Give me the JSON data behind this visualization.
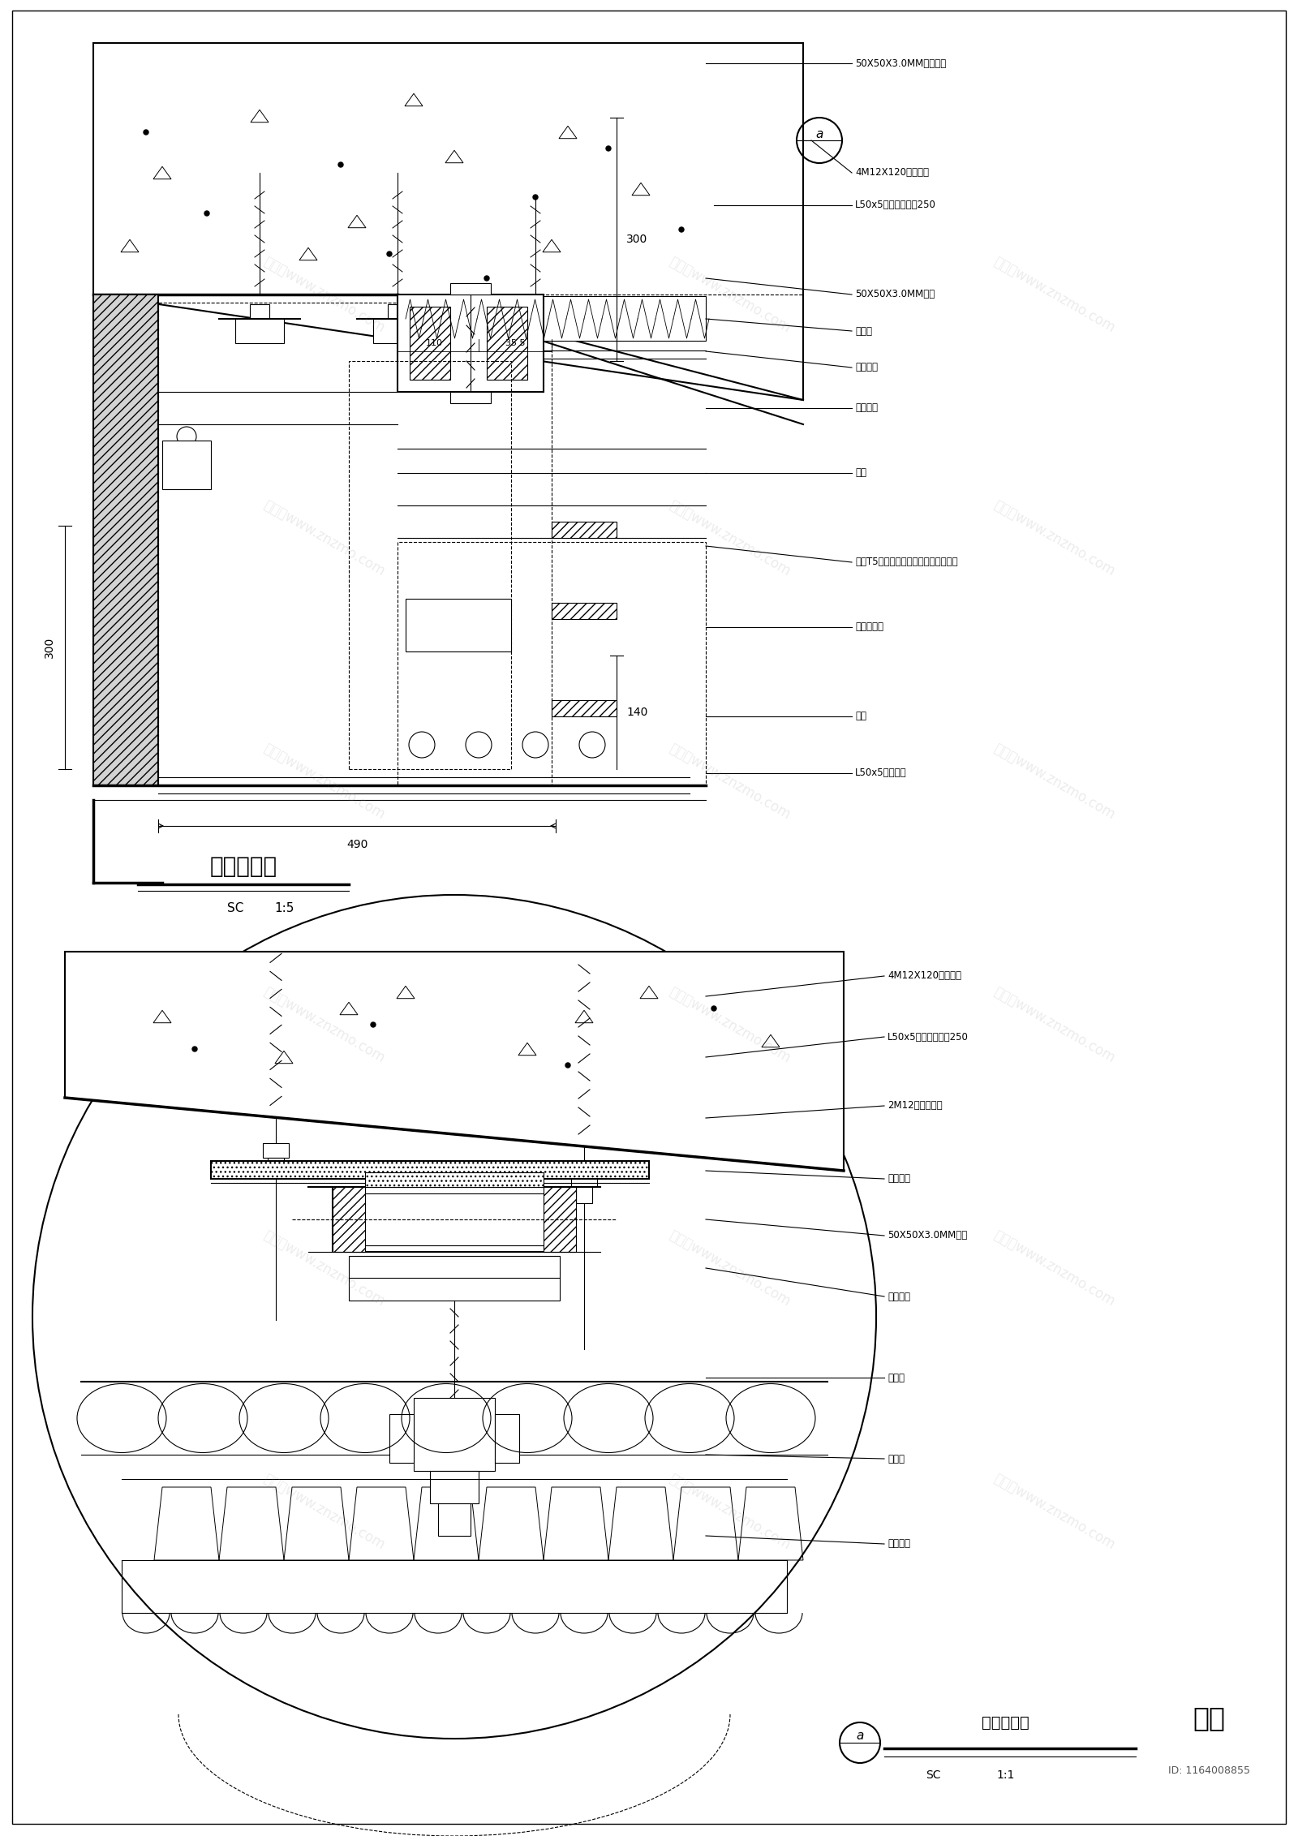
{
  "bg_color": "#ffffff",
  "line_color": "#000000",
  "fig_width": 16.0,
  "fig_height": 22.63,
  "drawing1": {
    "title": "节点大样图",
    "scale_label": "SC",
    "scale_value": "1:5",
    "dim_490": "490",
    "dim_300_left": "300",
    "dim_300_right": "300",
    "dim_140": "140",
    "dim_110": "110",
    "dim_355": "35 5",
    "annotations": [
      "50X50X3.0MM镀锌钢道",
      "4M12X120膨胀螺栓",
      "L50x5镀锌钢角码长250",
      "50X50X3.0MM铝道",
      "吸声棉",
      "铝制龙骨",
      "木质音板",
      "石材",
      "暗藏T5灯管（暗器遮光，保证无暗点）",
      "不锈钢挂件",
      "石材",
      "L50x5镀锌角钢"
    ]
  },
  "drawing2": {
    "title": "节点大样图",
    "scale_label": "SC",
    "scale_value": "1:1",
    "circle_label": "a",
    "annotations": [
      "4M12X120膨胀螺栓",
      "L50x5镀锌钢角码长250",
      "2M12六角头螺栓",
      "绝缘胶垫",
      "50X50X3.0MM铝道",
      "铝制龙骨",
      "吸声棉",
      "挂码件",
      "木质音板"
    ]
  },
  "logo_text": "知末",
  "id_text": "ID: 1164008855",
  "watermark": "知末网www.znzmo.com"
}
